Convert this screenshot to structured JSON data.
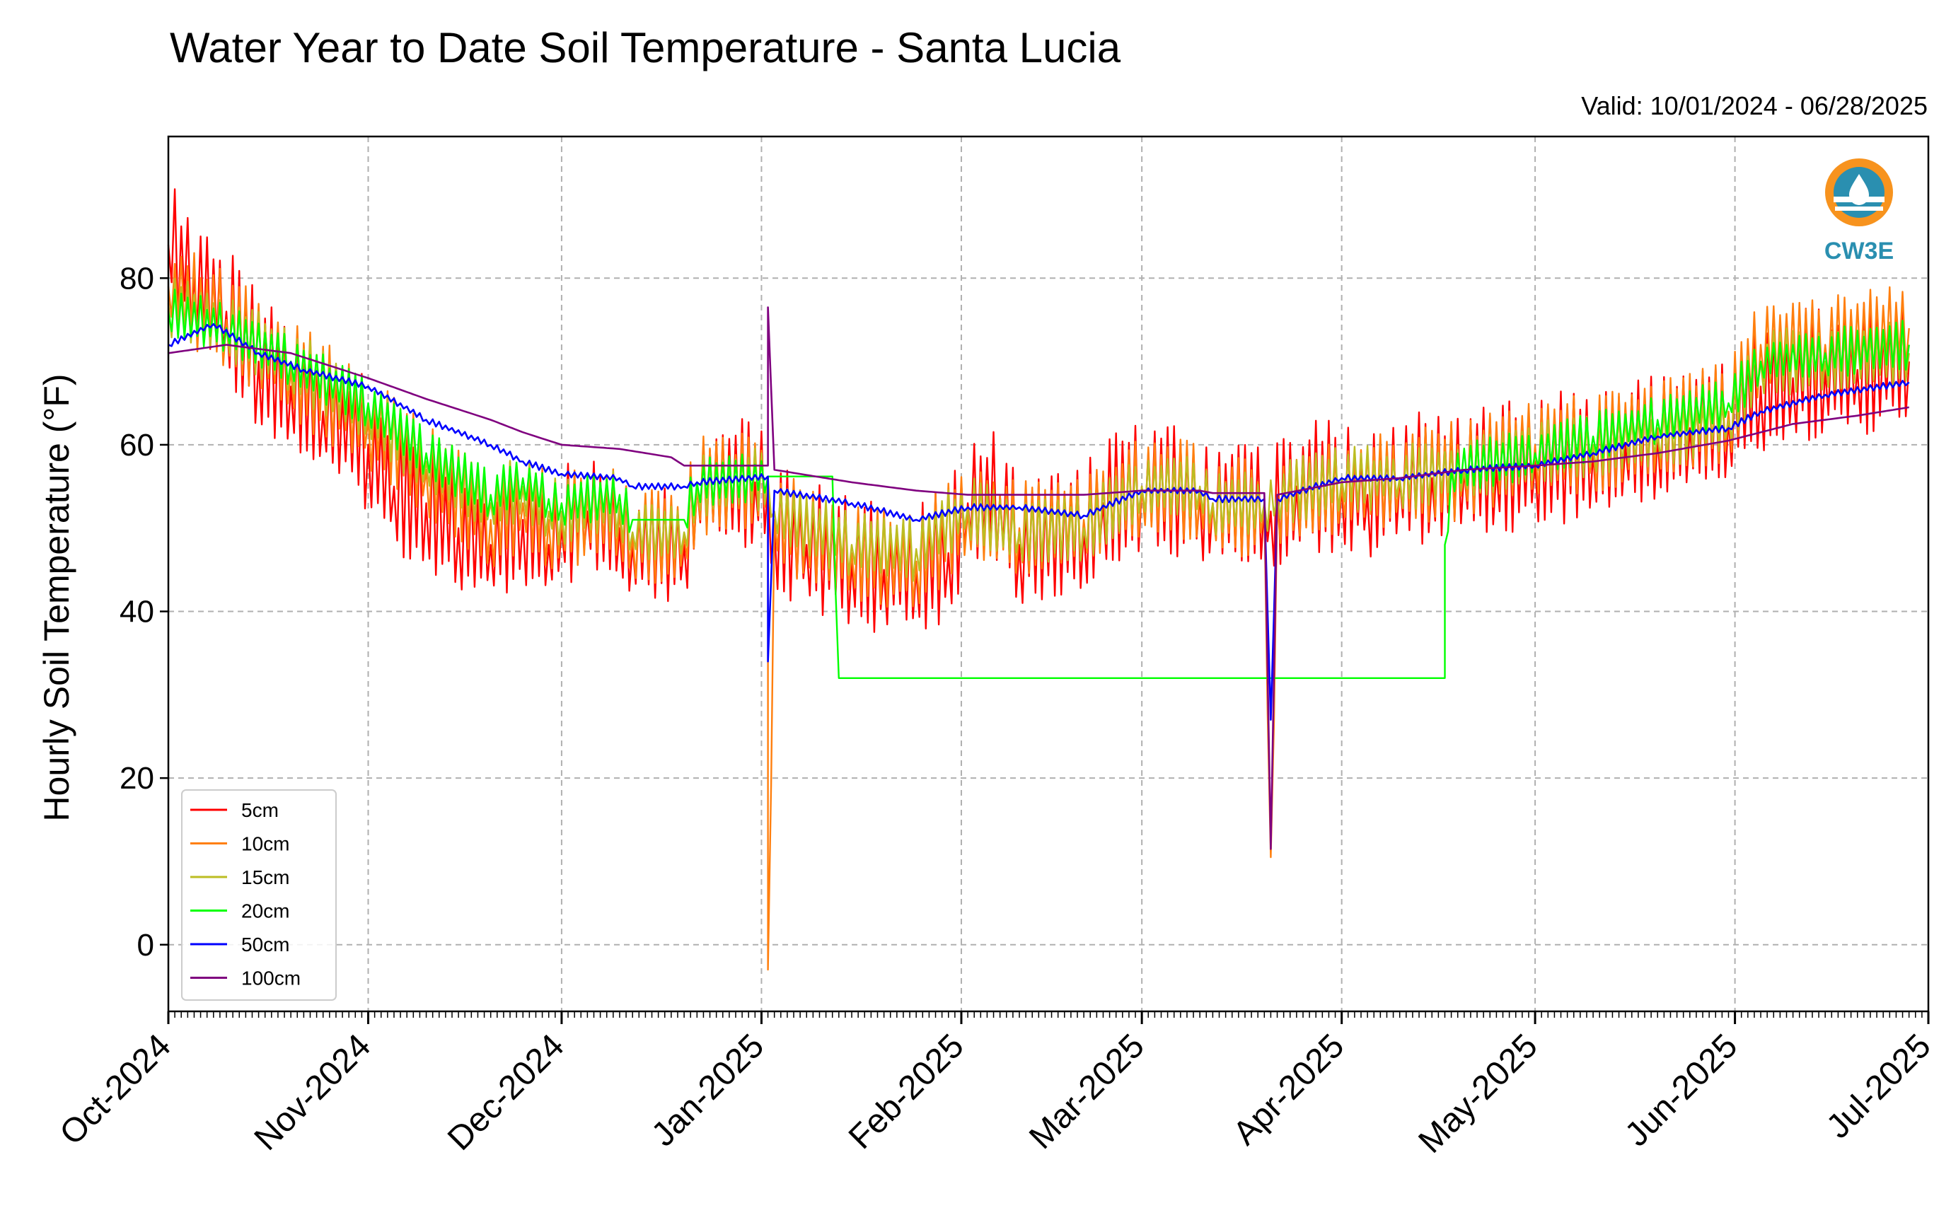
{
  "chart_data": {
    "type": "line",
    "title": "Water Year to Date Soil Temperature - Santa Lucia",
    "subtitle": "Valid: 10/01/2024 - 06/28/2025",
    "ylabel": "Hourly Soil Temperature (°F)",
    "xlabel": "",
    "ylim": [
      -8,
      97
    ],
    "xlim": [
      "2024-10-01",
      "2025-07-01"
    ],
    "yticks": [
      0,
      20,
      40,
      60,
      80
    ],
    "ytick_labels": [
      "0",
      "20",
      "40",
      "60",
      "80"
    ],
    "xticks": [
      "2024-10-01",
      "2024-11-01",
      "2024-12-01",
      "2025-01-01",
      "2025-02-01",
      "2025-03-01",
      "2025-04-01",
      "2025-05-01",
      "2025-06-01",
      "2025-07-01"
    ],
    "xtick_labels": [
      "Oct-2024",
      "Nov-2024",
      "Dec-2024",
      "Jan-2025",
      "Feb-2025",
      "Mar-2025",
      "Apr-2025",
      "May-2025",
      "Jun-2025",
      "Jul-2025"
    ],
    "grid": true,
    "legend_position": "lower-left",
    "logo_text": "CW3E",
    "series": [
      {
        "name": "5cm",
        "color": "#ff0000",
        "data": [
          [
            "2024-10-01",
            84
          ],
          [
            "2024-10-05",
            80
          ],
          [
            "2024-10-10",
            76
          ],
          [
            "2024-10-15",
            70
          ],
          [
            "2024-10-20",
            67
          ],
          [
            "2024-10-25",
            64
          ],
          [
            "2024-11-01",
            60
          ],
          [
            "2024-11-05",
            55
          ],
          [
            "2024-11-10",
            53
          ],
          [
            "2024-11-15",
            50
          ],
          [
            "2024-11-20",
            48
          ],
          [
            "2024-11-25",
            51
          ],
          [
            "2024-11-29",
            48
          ],
          [
            "2024-12-01",
            50
          ],
          [
            "2024-12-05",
            52
          ],
          [
            "2024-12-10",
            50
          ],
          [
            "2024-12-12",
            48
          ],
          [
            "2024-12-20",
            48
          ],
          [
            "2024-12-22",
            55
          ],
          [
            "2024-12-31",
            55.5
          ],
          [
            "2025-01-02",
            55.5
          ],
          [
            "2025-01-03",
            50
          ],
          [
            "2025-01-08",
            48
          ],
          [
            "2025-01-15",
            46
          ],
          [
            "2025-01-20",
            45
          ],
          [
            "2025-01-25",
            45
          ],
          [
            "2025-01-30",
            47
          ],
          [
            "2025-02-02",
            53
          ],
          [
            "2025-02-07",
            54
          ],
          [
            "2025-02-10",
            48
          ],
          [
            "2025-02-20",
            50
          ],
          [
            "2025-02-23",
            53
          ],
          [
            "2025-03-01",
            55
          ],
          [
            "2025-03-10",
            54
          ],
          [
            "2025-03-12",
            53
          ],
          [
            "2025-03-20",
            53
          ],
          [
            "2025-03-21",
            52
          ],
          [
            "2025-03-25",
            55
          ],
          [
            "2025-04-01",
            55
          ],
          [
            "2025-04-05",
            54
          ],
          [
            "2025-04-10",
            56
          ],
          [
            "2025-04-15",
            56
          ],
          [
            "2025-04-20",
            57
          ],
          [
            "2025-04-25",
            57
          ],
          [
            "2025-05-01",
            58
          ],
          [
            "2025-05-10",
            59
          ],
          [
            "2025-05-15",
            60
          ],
          [
            "2025-05-20",
            61
          ],
          [
            "2025-05-25",
            62
          ],
          [
            "2025-05-31",
            63
          ],
          [
            "2025-06-05",
            67
          ],
          [
            "2025-06-10",
            68
          ],
          [
            "2025-06-15",
            69
          ],
          [
            "2025-06-20",
            69
          ],
          [
            "2025-06-28",
            70
          ]
        ]
      },
      {
        "name": "10cm",
        "color": "#ff7f0e",
        "data": [
          [
            "2024-10-01",
            79
          ],
          [
            "2024-10-10",
            75
          ],
          [
            "2024-10-20",
            69
          ],
          [
            "2024-11-01",
            63
          ],
          [
            "2024-11-10",
            57
          ],
          [
            "2024-11-20",
            51
          ],
          [
            "2024-11-25",
            53
          ],
          [
            "2024-11-29",
            51
          ],
          [
            "2024-12-01",
            51
          ],
          [
            "2024-12-10",
            52
          ],
          [
            "2024-12-12",
            49
          ],
          [
            "2024-12-20",
            49
          ],
          [
            "2024-12-22",
            55
          ],
          [
            "2025-01-02",
            56
          ],
          [
            "2025-01-02",
            -3
          ],
          [
            "2025-01-03",
            51
          ],
          [
            "2025-01-15",
            47
          ],
          [
            "2025-01-25",
            46
          ],
          [
            "2025-02-02",
            52
          ],
          [
            "2025-02-10",
            50
          ],
          [
            "2025-02-20",
            51
          ],
          [
            "2025-03-01",
            55
          ],
          [
            "2025-03-10",
            54.5
          ],
          [
            "2025-03-12",
            52.5
          ],
          [
            "2025-03-20",
            52.5
          ],
          [
            "2025-03-21",
            10.5
          ],
          [
            "2025-03-22",
            53
          ],
          [
            "2025-04-01",
            55
          ],
          [
            "2025-04-10",
            56
          ],
          [
            "2025-04-20",
            57
          ],
          [
            "2025-05-01",
            60
          ],
          [
            "2025-05-10",
            60
          ],
          [
            "2025-05-20",
            62
          ],
          [
            "2025-05-31",
            64
          ],
          [
            "2025-06-05",
            72
          ],
          [
            "2025-06-15",
            72
          ],
          [
            "2025-06-28",
            74
          ]
        ]
      },
      {
        "name": "15cm",
        "color": "#bcbd22",
        "data": [
          [
            "2024-10-01",
            77
          ],
          [
            "2024-10-10",
            74
          ],
          [
            "2024-10-20",
            70
          ],
          [
            "2024-11-01",
            64
          ],
          [
            "2024-11-10",
            58
          ],
          [
            "2024-11-20",
            53
          ],
          [
            "2024-11-25",
            55
          ],
          [
            "2024-11-29",
            52
          ],
          [
            "2024-12-01",
            52
          ],
          [
            "2024-12-10",
            53
          ],
          [
            "2024-12-12",
            49.5
          ],
          [
            "2024-12-20",
            49.5
          ],
          [
            "2024-12-22",
            55
          ],
          [
            "2025-01-02",
            56
          ],
          [
            "2025-01-03",
            52
          ],
          [
            "2025-01-15",
            48
          ],
          [
            "2025-01-25",
            47.5
          ],
          [
            "2025-02-02",
            52.5
          ],
          [
            "2025-02-10",
            49.5
          ],
          [
            "2025-02-20",
            50
          ],
          [
            "2025-03-01",
            55
          ],
          [
            "2025-03-10",
            55
          ],
          [
            "2025-03-12",
            53
          ],
          [
            "2025-03-20",
            53
          ],
          [
            "2025-03-22",
            54
          ],
          [
            "2025-04-01",
            56
          ],
          [
            "2025-04-10",
            56
          ],
          [
            "2025-04-20",
            57
          ],
          [
            "2025-05-01",
            59
          ],
          [
            "2025-05-10",
            60
          ],
          [
            "2025-05-20",
            61
          ],
          [
            "2025-05-31",
            63
          ],
          [
            "2025-06-05",
            70
          ],
          [
            "2025-06-15",
            70
          ],
          [
            "2025-06-28",
            71
          ]
        ]
      },
      {
        "name": "20cm",
        "color": "#00ff00",
        "data": [
          [
            "2024-10-01",
            76
          ],
          [
            "2024-10-10",
            74
          ],
          [
            "2024-10-20",
            70
          ],
          [
            "2024-11-01",
            65
          ],
          [
            "2024-11-10",
            59
          ],
          [
            "2024-11-20",
            54
          ],
          [
            "2024-11-25",
            56
          ],
          [
            "2024-11-29",
            53.5
          ],
          [
            "2024-12-01",
            53
          ],
          [
            "2024-12-10",
            54
          ],
          [
            "2024-12-12",
            51
          ],
          [
            "2024-12-20",
            51
          ],
          [
            "2024-12-22",
            55.5
          ],
          [
            "2025-01-02",
            56.2
          ],
          [
            "2025-01-12",
            56.2
          ],
          [
            "2025-01-13",
            32
          ],
          [
            "2025-04-17",
            32
          ],
          [
            "2025-04-17",
            48
          ],
          [
            "2025-04-18",
            57
          ],
          [
            "2025-05-01",
            59
          ],
          [
            "2025-05-10",
            61
          ],
          [
            "2025-05-20",
            63
          ],
          [
            "2025-05-31",
            65
          ],
          [
            "2025-06-05",
            70
          ],
          [
            "2025-06-15",
            71
          ],
          [
            "2025-06-28",
            72
          ]
        ]
      },
      {
        "name": "50cm",
        "color": "#0000ff",
        "data": [
          [
            "2024-10-01",
            72
          ],
          [
            "2024-10-08",
            74.5
          ],
          [
            "2024-10-15",
            71
          ],
          [
            "2024-10-22",
            69
          ],
          [
            "2024-11-01",
            67
          ],
          [
            "2024-11-10",
            63
          ],
          [
            "2024-11-20",
            60
          ],
          [
            "2024-11-25",
            58
          ],
          [
            "2024-12-01",
            56.5
          ],
          [
            "2024-12-10",
            56
          ],
          [
            "2024-12-12",
            55
          ],
          [
            "2024-12-20",
            55
          ],
          [
            "2024-12-22",
            55.5
          ],
          [
            "2025-01-02",
            56.2
          ],
          [
            "2025-01-02",
            34
          ],
          [
            "2025-01-03",
            54.5
          ],
          [
            "2025-01-15",
            53
          ],
          [
            "2025-01-25",
            51
          ],
          [
            "2025-02-02",
            52.5
          ],
          [
            "2025-02-10",
            52.5
          ],
          [
            "2025-02-20",
            51.5
          ],
          [
            "2025-03-01",
            54.5
          ],
          [
            "2025-03-10",
            54.5
          ],
          [
            "2025-03-12",
            53.5
          ],
          [
            "2025-03-20",
            53.5
          ],
          [
            "2025-03-21",
            27
          ],
          [
            "2025-03-22",
            53.5
          ],
          [
            "2025-04-01",
            56
          ],
          [
            "2025-04-10",
            56
          ],
          [
            "2025-04-20",
            57
          ],
          [
            "2025-05-01",
            57.5
          ],
          [
            "2025-05-10",
            59
          ],
          [
            "2025-05-20",
            61
          ],
          [
            "2025-05-31",
            62
          ],
          [
            "2025-06-05",
            64
          ],
          [
            "2025-06-15",
            66
          ],
          [
            "2025-06-28",
            67.5
          ]
        ]
      },
      {
        "name": "100cm",
        "color": "#7f007f",
        "data": [
          [
            "2024-10-01",
            71
          ],
          [
            "2024-10-10",
            72
          ],
          [
            "2024-10-20",
            71
          ],
          [
            "2024-11-01",
            68
          ],
          [
            "2024-11-10",
            65.5
          ],
          [
            "2024-11-20",
            63
          ],
          [
            "2024-11-25",
            61.5
          ],
          [
            "2024-12-01",
            60
          ],
          [
            "2024-12-10",
            59.5
          ],
          [
            "2024-12-18",
            58.5
          ],
          [
            "2024-12-20",
            57.5
          ],
          [
            "2025-01-02",
            57.5
          ],
          [
            "2025-01-02",
            76.5
          ],
          [
            "2025-01-03",
            57
          ],
          [
            "2025-01-15",
            55.5
          ],
          [
            "2025-01-25",
            54.5
          ],
          [
            "2025-02-02",
            54
          ],
          [
            "2025-02-10",
            54
          ],
          [
            "2025-02-20",
            54
          ],
          [
            "2025-03-01",
            54.5
          ],
          [
            "2025-03-10",
            54.5
          ],
          [
            "2025-03-12",
            54.2
          ],
          [
            "2025-03-20",
            54.2
          ],
          [
            "2025-03-21",
            11.5
          ],
          [
            "2025-03-22",
            54
          ],
          [
            "2025-04-01",
            55.5
          ],
          [
            "2025-04-10",
            56
          ],
          [
            "2025-04-20",
            57
          ],
          [
            "2025-05-01",
            57.5
          ],
          [
            "2025-05-10",
            58
          ],
          [
            "2025-05-20",
            59
          ],
          [
            "2025-05-31",
            60.5
          ],
          [
            "2025-06-10",
            62.5
          ],
          [
            "2025-06-20",
            63.5
          ],
          [
            "2025-06-28",
            64.5
          ]
        ]
      }
    ]
  }
}
